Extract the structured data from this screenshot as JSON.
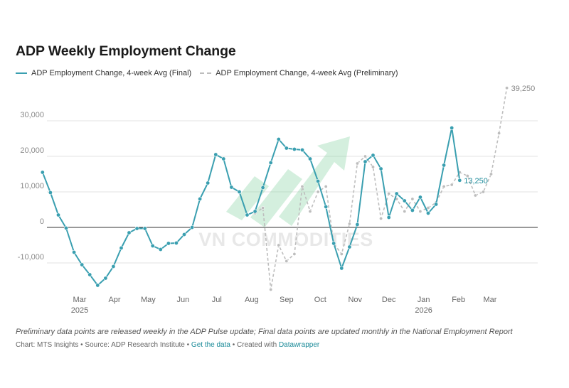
{
  "chart_data": {
    "type": "line",
    "title": "ADP Weekly Employment Change",
    "ylim": [
      -18000,
      40000
    ],
    "y_ticks": [
      -10000,
      0,
      10000,
      20000,
      30000
    ],
    "y_tick_labels": [
      "-10,000",
      "0",
      "10,000",
      "20,000",
      "30,000"
    ],
    "x_ticks": [
      {
        "date": "2025-03-01",
        "label": "Mar",
        "year": "2025"
      },
      {
        "date": "2025-04-01",
        "label": "Apr",
        "year": ""
      },
      {
        "date": "2025-05-01",
        "label": "May",
        "year": ""
      },
      {
        "date": "2025-06-01",
        "label": "Jun",
        "year": ""
      },
      {
        "date": "2025-07-01",
        "label": "Jul",
        "year": ""
      },
      {
        "date": "2025-08-01",
        "label": "Aug",
        "year": ""
      },
      {
        "date": "2025-09-01",
        "label": "Sep",
        "year": ""
      },
      {
        "date": "2025-10-01",
        "label": "Oct",
        "year": ""
      },
      {
        "date": "2025-11-01",
        "label": "Nov",
        "year": ""
      },
      {
        "date": "2025-12-01",
        "label": "Dec",
        "year": ""
      },
      {
        "date": "2026-01-01",
        "label": "Jan",
        "year": "2026"
      },
      {
        "date": "2026-02-01",
        "label": "Feb",
        "year": ""
      },
      {
        "date": "2026-03-01",
        "label": "Mar",
        "year": ""
      }
    ],
    "grid": true,
    "legend_position": "top-left",
    "series": [
      {
        "name": "ADP Employment Change, 4-week Avg (Final)",
        "color": "#3a9fb0",
        "style": "solid",
        "end_label": "13,250",
        "points": [
          [
            "2025-01-27",
            15500
          ],
          [
            "2025-02-03",
            9800
          ],
          [
            "2025-02-10",
            3500
          ],
          [
            "2025-02-17",
            -200
          ],
          [
            "2025-02-24",
            -7000
          ],
          [
            "2025-03-03",
            -10500
          ],
          [
            "2025-03-10",
            -13300
          ],
          [
            "2025-03-17",
            -16300
          ],
          [
            "2025-03-24",
            -14300
          ],
          [
            "2025-03-31",
            -11000
          ],
          [
            "2025-04-07",
            -5800
          ],
          [
            "2025-04-14",
            -1500
          ],
          [
            "2025-04-21",
            -300
          ],
          [
            "2025-04-28",
            -300
          ],
          [
            "2025-05-05",
            -5200
          ],
          [
            "2025-05-12",
            -6200
          ],
          [
            "2025-05-19",
            -4500
          ],
          [
            "2025-05-26",
            -4400
          ],
          [
            "2025-06-02",
            -2000
          ],
          [
            "2025-06-09",
            0
          ],
          [
            "2025-06-16",
            8000
          ],
          [
            "2025-06-23",
            12500
          ],
          [
            "2025-06-30",
            20500
          ],
          [
            "2025-07-07",
            19300
          ],
          [
            "2025-07-14",
            11300
          ],
          [
            "2025-07-21",
            10000
          ],
          [
            "2025-07-28",
            3500
          ],
          [
            "2025-08-04",
            4500
          ],
          [
            "2025-08-11",
            11200
          ],
          [
            "2025-08-18",
            18200
          ],
          [
            "2025-08-25",
            24800
          ],
          [
            "2025-09-01",
            22300
          ],
          [
            "2025-09-08",
            22000
          ],
          [
            "2025-09-15",
            21800
          ],
          [
            "2025-09-22",
            19300
          ],
          [
            "2025-09-29",
            13000
          ],
          [
            "2025-10-06",
            5800
          ],
          [
            "2025-10-13",
            -4500
          ],
          [
            "2025-10-20",
            -11500
          ],
          [
            "2025-10-27",
            -5500
          ],
          [
            "2025-11-03",
            800
          ],
          [
            "2025-11-10",
            18500
          ],
          [
            "2025-11-17",
            20300
          ],
          [
            "2025-11-24",
            16500
          ],
          [
            "2025-12-01",
            2800
          ],
          [
            "2025-12-08",
            9500
          ],
          [
            "2025-12-15",
            7500
          ],
          [
            "2025-12-22",
            4800
          ],
          [
            "2025-12-29",
            8500
          ],
          [
            "2026-01-05",
            4000
          ],
          [
            "2026-01-12",
            6500
          ],
          [
            "2026-01-19",
            17500
          ],
          [
            "2026-01-26",
            28000
          ],
          [
            "2026-02-02",
            13250
          ]
        ]
      },
      {
        "name": "ADP Employment Change, 4-week Avg (Preliminary)",
        "color": "#bdbdbd",
        "style": "dashed",
        "end_label": "39,250",
        "points": [
          [
            "2025-08-04",
            4000
          ],
          [
            "2025-08-11",
            5500
          ],
          [
            "2025-08-18",
            -17500
          ],
          [
            "2025-08-25",
            -5000
          ],
          [
            "2025-09-01",
            -9500
          ],
          [
            "2025-09-08",
            -7500
          ],
          [
            "2025-09-15",
            11500
          ],
          [
            "2025-09-22",
            4500
          ],
          [
            "2025-09-29",
            10000
          ],
          [
            "2025-10-06",
            11500
          ],
          [
            "2025-10-13",
            -4500
          ],
          [
            "2025-10-20",
            -7500
          ],
          [
            "2025-10-27",
            1000
          ],
          [
            "2025-11-03",
            18000
          ],
          [
            "2025-11-10",
            20000
          ],
          [
            "2025-11-17",
            17000
          ],
          [
            "2025-11-24",
            2500
          ],
          [
            "2025-12-01",
            9500
          ],
          [
            "2025-12-08",
            8000
          ],
          [
            "2025-12-15",
            4500
          ],
          [
            "2025-12-22",
            8000
          ],
          [
            "2025-12-29",
            4500
          ],
          [
            "2026-01-05",
            5500
          ],
          [
            "2026-01-12",
            7000
          ],
          [
            "2026-01-19",
            11500
          ],
          [
            "2026-01-26",
            12000
          ],
          [
            "2026-02-02",
            15500
          ],
          [
            "2026-02-09",
            14500
          ],
          [
            "2026-02-16",
            9000
          ],
          [
            "2026-02-23",
            10000
          ],
          [
            "2026-03-02",
            15000
          ],
          [
            "2026-03-09",
            26500
          ],
          [
            "2026-03-16",
            39250
          ]
        ]
      }
    ]
  },
  "watermark": {
    "text": "VN COMMODITIES"
  },
  "footnote": "Preliminary data points are released weekly in the ADP Pulse update; Final data points are updated monthly in the National Employment Report",
  "credits": {
    "prefix": "Chart: MTS Insights • Source: ADP Research Institute • ",
    "data_link": "Get the data",
    "middle": " • Created with ",
    "tool_link": "Datawrapper"
  }
}
